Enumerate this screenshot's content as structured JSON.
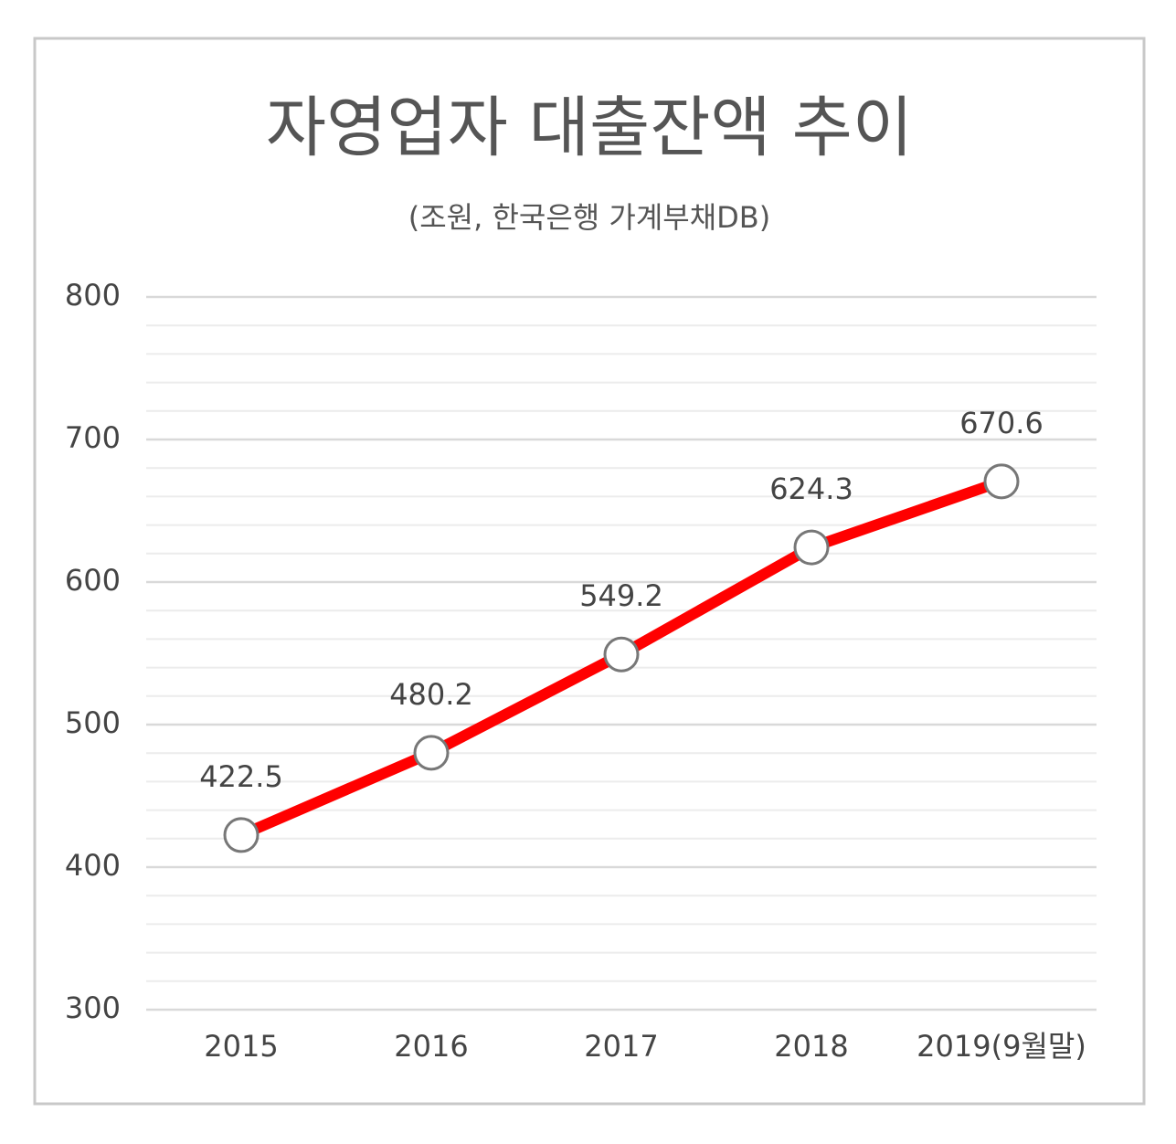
{
  "chart_data": {
    "type": "line",
    "title": "자영업자 대출잔액 추이",
    "subtitle": "(조원, 한국은행 가계부채DB)",
    "categories": [
      "2015",
      "2016",
      "2017",
      "2018",
      "2019(9월말)"
    ],
    "series": [
      {
        "name": "자영업자 대출잔액",
        "color": "#ff0000",
        "values": [
          422.5,
          480.2,
          549.2,
          624.3,
          670.6
        ]
      }
    ],
    "ylim": [
      300,
      800
    ],
    "yticks": [
      300,
      400,
      500,
      600,
      700,
      800
    ],
    "grid": true
  }
}
